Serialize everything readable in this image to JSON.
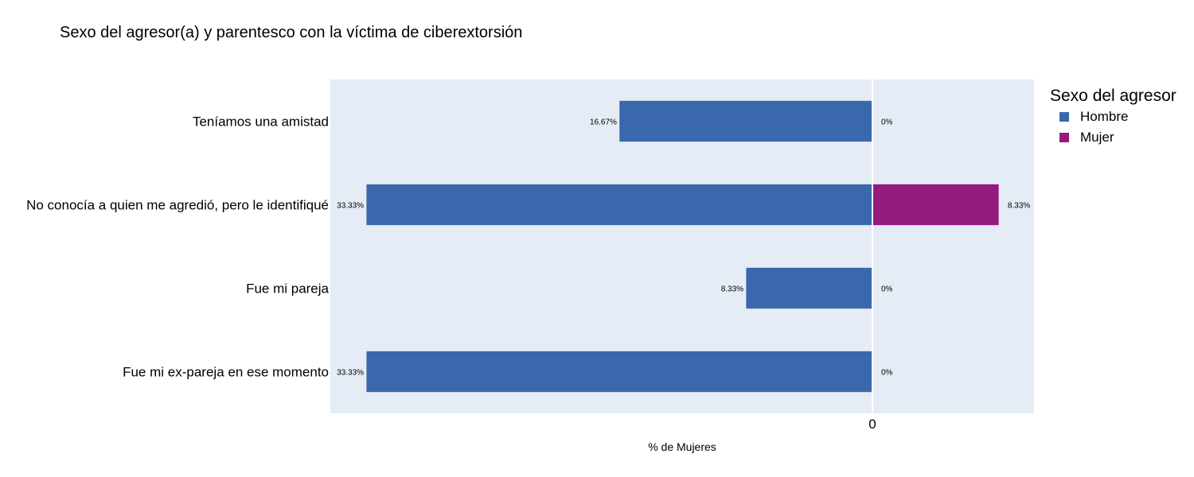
{
  "chart_data": {
    "type": "bar",
    "orientation": "horizontal",
    "barmode": "relative",
    "title": "Sexo del agresor(a) y parentesco con la víctima de ciberextorsión",
    "xlabel": "% de Mujeres",
    "ylabel": "",
    "x_ticks": [
      "0"
    ],
    "categories": [
      "Teníamos una amistad",
      "No conocía a quien me agredió, pero le identifiqué",
      "Fue mi pareja",
      "Fue mi ex-pareja en ese momento"
    ],
    "series": [
      {
        "name": "Hombre",
        "color": "#3A68AC",
        "direction": "left",
        "values": [
          16.67,
          33.33,
          8.33,
          33.33
        ],
        "labels": [
          "16.67%",
          "33.33%",
          "8.33%",
          "33.33%"
        ]
      },
      {
        "name": "Mujer",
        "color": "#951A7E",
        "direction": "right",
        "values": [
          0,
          8.33,
          0,
          0
        ],
        "labels": [
          "0%",
          "8.33%",
          "0%",
          "0%"
        ]
      }
    ],
    "legend_title": "Sexo del agresor",
    "legend_position": "top-right",
    "grid": false,
    "plot_background": "#E5ECF6"
  }
}
